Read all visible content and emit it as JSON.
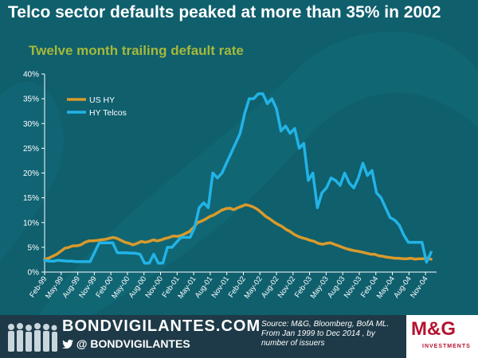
{
  "header": {
    "title": "Telco sector defaults peaked at more than 35% in 2002",
    "subtitle": "Twelve month trailing default rate"
  },
  "footer": {
    "brand_name": "BONDVIGILANTES.COM",
    "brand_handle": "@  BONDVIGILANTES",
    "source_lines": [
      "Source: M&G, Bloomberg, BofA ML.",
      "From Jan 1999 to Dec 2014 , by number of issuers"
    ],
    "logo_text": "M&G",
    "logo_subtext": "INVESTMENTS"
  },
  "colors": {
    "background": "#0f5f6d",
    "us_hy": "#d99a2b",
    "hy_telcos": "#22b3e6",
    "subtitle": "#a6b83a",
    "footer": "#1e3a48",
    "logo_red": "#b51330"
  },
  "chart_data": {
    "type": "line",
    "title": "Telco sector defaults peaked at more than 35% in 2002",
    "subtitle": "Twelve month trailing default rate",
    "x_tick_labels": [
      "Feb-99",
      "May-99",
      "Aug-99",
      "Nov-99",
      "Feb-00",
      "May-00",
      "Aug-00",
      "Nov-00",
      "Feb-01",
      "May-01",
      "Aug-01",
      "Nov-01",
      "Feb-02",
      "May-02",
      "Aug-02",
      "Nov-02",
      "Feb-03",
      "May-03",
      "Aug-03",
      "Nov-03",
      "Feb-04",
      "May-04",
      "Aug-04",
      "Nov-04"
    ],
    "x_start": "Feb-99",
    "y_ticks": [
      "0%",
      "5%",
      "10%",
      "15%",
      "20%",
      "25%",
      "30%",
      "35%",
      "40%"
    ],
    "ylim": [
      0,
      40
    ],
    "y_unit": "%",
    "grid": false,
    "legend_position": "top-left",
    "series": [
      {
        "name": "US HY",
        "values": [
          2.6,
          2.8,
          3.2,
          3.6,
          4.2,
          4.8,
          5.0,
          5.3,
          5.3,
          5.5,
          6.0,
          6.3,
          6.3,
          6.4,
          6.5,
          6.6,
          6.8,
          7.0,
          6.8,
          6.4,
          6.0,
          5.8,
          5.5,
          5.8,
          6.2,
          6.0,
          6.2,
          6.5,
          6.3,
          6.5,
          6.8,
          7.0,
          7.3,
          7.2,
          7.4,
          7.8,
          8.2,
          9.0,
          10.0,
          10.3,
          10.7,
          11.2,
          11.5,
          12.0,
          12.5,
          12.8,
          12.9,
          12.6,
          13.0,
          13.3,
          13.6,
          13.4,
          13.1,
          12.6,
          11.9,
          11.2,
          10.7,
          10.1,
          9.6,
          9.2,
          8.6,
          8.2,
          7.6,
          7.2,
          6.9,
          6.7,
          6.4,
          6.2,
          5.8,
          5.6,
          5.8,
          5.9,
          5.6,
          5.3,
          5.0,
          4.7,
          4.5,
          4.3,
          4.2,
          4.0,
          3.8,
          3.6,
          3.6,
          3.3,
          3.2,
          3.0,
          2.9,
          2.8,
          2.8,
          2.7,
          2.7,
          2.8,
          2.6,
          2.7,
          2.7,
          2.8,
          2.6
        ]
      },
      {
        "name": "HY Telcos",
        "values": [
          2.4,
          2.2,
          2.2,
          2.4,
          2.3,
          2.2,
          2.2,
          2.1,
          2.1,
          2.1,
          2.1,
          4.0,
          5.9,
          5.9,
          5.9,
          5.9,
          3.9,
          3.9,
          3.9,
          3.8,
          3.8,
          3.6,
          1.8,
          1.8,
          3.6,
          1.8,
          1.8,
          5.0,
          5.0,
          6.0,
          7.0,
          7.0,
          7.0,
          9.0,
          13.0,
          14.0,
          13.0,
          20.0,
          19.0,
          20.0,
          22.0,
          24.0,
          26.0,
          28.0,
          32.0,
          35.0,
          35.0,
          36.0,
          36.0,
          34.0,
          35.0,
          33.0,
          28.5,
          29.5,
          28.0,
          29.0,
          25.0,
          26.0,
          18.5,
          20.0,
          13.0,
          16.0,
          17.0,
          19.0,
          18.5,
          17.5,
          20.0,
          18.0,
          17.0,
          19.0,
          22.0,
          19.5,
          20.5,
          16.0,
          15.0,
          13.0,
          11.0,
          10.5,
          9.5,
          7.5,
          6.0,
          6.0,
          6.0,
          6.0,
          2.0,
          4.0
        ]
      }
    ]
  }
}
